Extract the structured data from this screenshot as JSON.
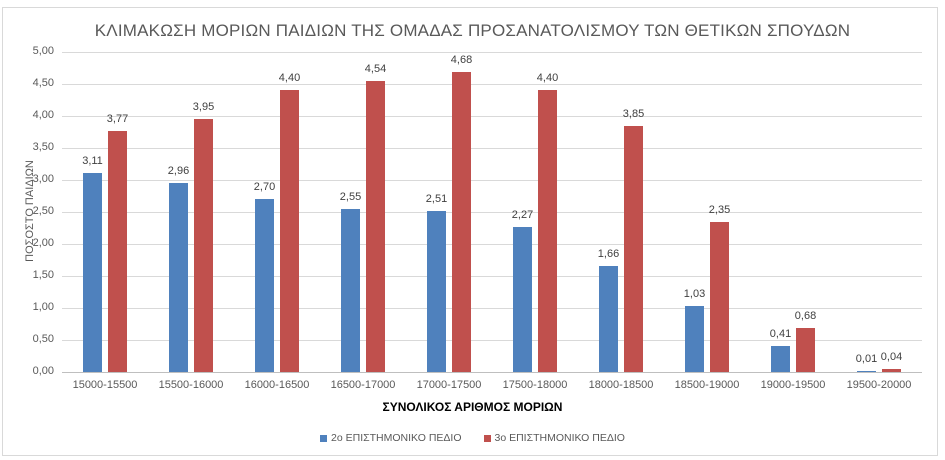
{
  "chart_data": {
    "type": "bar",
    "title": "ΚΛΙΜΑΚΩΣΗ ΜΟΡΙΩΝ ΠΑΙΔΙΩΝ ΤΗΣ ΟΜΑΔΑΣ ΠΡΟΣΑΝΑΤΟΛΙΣΜΟΥ ΤΩΝ ΘΕΤΙΚΩΝ ΣΠΟΥΔΩΝ",
    "xlabel": "ΣΥΝΟΛΙΚΟΣ ΑΡΙΘΜΟΣ ΜΟΡΙΩΝ",
    "ylabel": "ΠΟΣΟΣΤΟ ΠΑΙΔΙΩΝ",
    "ylim": [
      0,
      5
    ],
    "yticks": [
      "0,00",
      "0,50",
      "1,00",
      "1,50",
      "2,00",
      "2,50",
      "3,00",
      "3,50",
      "4,00",
      "4,50",
      "5,00"
    ],
    "grid": true,
    "legend_position": "bottom",
    "categories": [
      "15000-15500",
      "15500-16000",
      "16000-16500",
      "16500-17000",
      "17000-17500",
      "17500-18000",
      "18000-18500",
      "18500-19000",
      "19000-19500",
      "19500-20000"
    ],
    "series": [
      {
        "name": "2ο ΕΠΙΣΤΗΜΟΝΙΚΟ ΠΕΔΙΟ",
        "color": "#4f81bd",
        "values": [
          3.11,
          2.96,
          2.7,
          2.55,
          2.51,
          2.27,
          1.66,
          1.03,
          0.41,
          0.01
        ],
        "labels": [
          "3,11",
          "2,96",
          "2,70",
          "2,55",
          "2,51",
          "2,27",
          "1,66",
          "1,03",
          "0,41",
          "0,01"
        ]
      },
      {
        "name": "3ο ΕΠΙΣΤΗΜΟΝΙΚΟ ΠΕΔΙΟ",
        "color": "#c0504d",
        "values": [
          3.77,
          3.95,
          4.4,
          4.54,
          4.68,
          4.4,
          3.85,
          2.35,
          0.68,
          0.04
        ],
        "labels": [
          "3,77",
          "3,95",
          "4,40",
          "4,54",
          "4,68",
          "4,40",
          "3,85",
          "2,35",
          "0,68",
          "0,04"
        ]
      }
    ]
  }
}
